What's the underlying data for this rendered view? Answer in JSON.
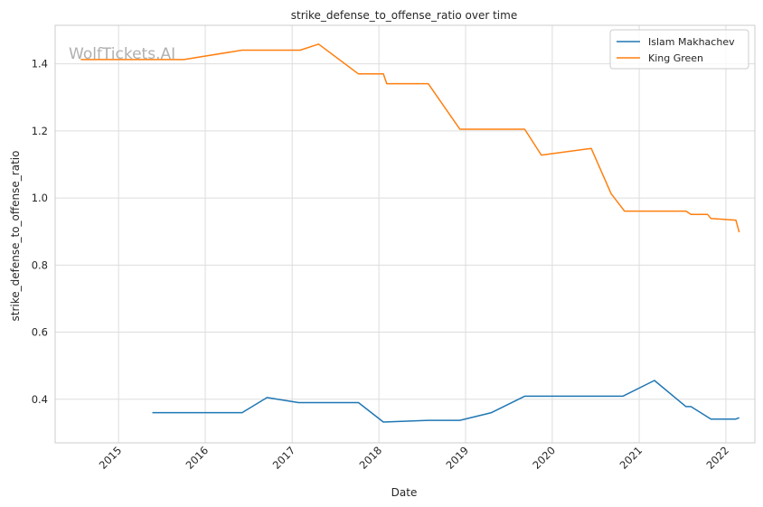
{
  "chart_data": {
    "type": "line",
    "title": "strike_defense_to_offense_ratio over time",
    "xlabel": "Date",
    "ylabel": "strike_defense_to_offense_ratio",
    "watermark": "WolfTickets.AI",
    "x_ticks": [
      "2015",
      "2016",
      "2017",
      "2018",
      "2019",
      "2020",
      "2021",
      "2022"
    ],
    "y_ticks": [
      "0.4",
      "0.6",
      "0.8",
      "1.0",
      "1.2",
      "1.4"
    ],
    "xlim": [
      "2014-04-09",
      "2022-05-03"
    ],
    "ylim": [
      0.27,
      1.515
    ],
    "grid": true,
    "legend_position": "top-right",
    "series": [
      {
        "name": "Islam Makhachev",
        "color": "#1f77b4",
        "points": [
          [
            "2015-05-23",
            0.36
          ],
          [
            "2016-06-04",
            0.36
          ],
          [
            "2016-09-17",
            0.405
          ],
          [
            "2017-01-28",
            0.39
          ],
          [
            "2017-10-07",
            0.39
          ],
          [
            "2018-01-20",
            0.332
          ],
          [
            "2018-07-28",
            0.337
          ],
          [
            "2018-12-08",
            0.337
          ],
          [
            "2019-04-20",
            0.36
          ],
          [
            "2019-09-07",
            0.409
          ],
          [
            "2020-10-24",
            0.409
          ],
          [
            "2021-03-06",
            0.456
          ],
          [
            "2021-07-17",
            0.378
          ],
          [
            "2021-08-07",
            0.378
          ],
          [
            "2021-10-30",
            0.341
          ],
          [
            "2022-02-12",
            0.341
          ],
          [
            "2022-02-26",
            0.345
          ]
        ]
      },
      {
        "name": "King Green",
        "color": "#ff7f0e",
        "points": [
          [
            "2014-07-26",
            1.413
          ],
          [
            "2015-10-03",
            1.413
          ],
          [
            "2016-06-04",
            1.441
          ],
          [
            "2017-02-04",
            1.441
          ],
          [
            "2017-04-22",
            1.459
          ],
          [
            "2017-10-07",
            1.37
          ],
          [
            "2018-01-20",
            1.37
          ],
          [
            "2018-02-03",
            1.341
          ],
          [
            "2018-07-28",
            1.341
          ],
          [
            "2018-12-08",
            1.205
          ],
          [
            "2019-09-07",
            1.205
          ],
          [
            "2019-11-16",
            1.128
          ],
          [
            "2020-06-13",
            1.148
          ],
          [
            "2020-09-05",
            1.013
          ],
          [
            "2020-10-31",
            0.961
          ],
          [
            "2021-07-17",
            0.961
          ],
          [
            "2021-08-07",
            0.951
          ],
          [
            "2021-10-16",
            0.951
          ],
          [
            "2021-10-30",
            0.939
          ],
          [
            "2022-02-12",
            0.934
          ],
          [
            "2022-02-26",
            0.898
          ]
        ]
      }
    ]
  }
}
